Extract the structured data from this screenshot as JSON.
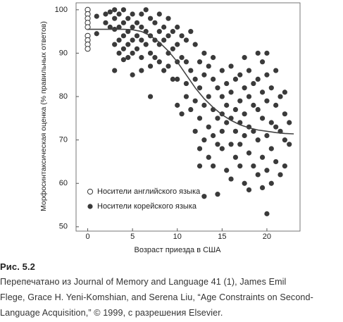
{
  "chart_data": {
    "type": "scatter",
    "x_label": "Возраст приезда в США",
    "y_label": "Морфосинтаксическая оценка (% правильных ответов)",
    "xlim": [
      -1.3,
      23.7
    ],
    "ylim": [
      49,
      101.6
    ],
    "xticks": [
      0,
      5,
      10,
      15,
      20
    ],
    "yticks": [
      50,
      60,
      70,
      80,
      90,
      100
    ],
    "legend": "lower left",
    "series": [
      {
        "name": "Носители английского языка",
        "color": "#333333",
        "marker": "open",
        "x": [
          0,
          0,
          0,
          0,
          0,
          0,
          0,
          0,
          0
        ],
        "values": [
          100,
          99,
          98,
          97,
          96,
          94,
          93,
          92,
          91
        ]
      },
      {
        "name": "Носители корейского языка",
        "color": "#3a3a3a",
        "marker": "filled",
        "x": [
          1,
          1,
          2,
          2,
          2.5,
          2.5,
          3,
          3,
          3,
          3,
          3,
          3.5,
          3.5,
          3.5,
          3.5,
          4,
          4,
          4,
          4,
          4,
          4.5,
          4.5,
          4.5,
          4.5,
          5,
          5,
          5,
          5,
          5,
          5.5,
          5.5,
          5.5,
          6,
          6,
          6,
          6,
          6,
          6.5,
          6.5,
          6.5,
          7,
          7,
          7,
          7,
          7,
          7.5,
          7.5,
          7.5,
          8,
          8,
          8,
          8,
          8.5,
          8.5,
          8.5,
          9,
          9,
          9,
          9,
          9.5,
          9.5,
          9.5,
          10,
          10,
          10,
          10,
          10,
          10.5,
          10.5,
          10.5,
          11,
          11,
          11,
          11,
          11.5,
          11.5,
          11.5,
          12,
          12,
          12,
          12,
          12.5,
          12.5,
          12.5,
          12.5,
          12.5,
          13,
          13,
          13,
          13,
          13,
          13.5,
          13.5,
          13.5,
          13.5,
          14,
          14,
          14,
          14,
          14,
          14.5,
          14.5,
          14.5,
          14.5,
          15,
          15,
          15,
          15,
          15,
          15.5,
          15.5,
          15.5,
          15.5,
          16,
          16,
          16,
          16,
          16,
          16.5,
          16.5,
          16.5,
          16.5,
          17,
          17,
          17,
          17,
          17,
          17.5,
          17.5,
          17.5,
          17.5,
          17.5,
          18,
          18,
          18,
          18,
          18,
          18.5,
          18.5,
          18.5,
          18.5,
          19,
          19,
          19,
          19,
          19,
          19.5,
          19.5,
          19.5,
          19.5,
          19.5,
          20,
          20,
          20,
          20,
          20,
          20,
          20.5,
          20.5,
          20.5,
          20.5,
          21,
          21,
          21,
          21,
          21.5,
          21.5,
          21.5,
          22,
          22,
          22,
          22,
          22.5,
          22.5
        ],
        "values": [
          98.5,
          94.5,
          99,
          97,
          99.5,
          96,
          100,
          98,
          95.5,
          92,
          86,
          99,
          96,
          93,
          90,
          100,
          97,
          94,
          91,
          88.5,
          98,
          95,
          92,
          89,
          99,
          96,
          93,
          90,
          85,
          97,
          94,
          91,
          99,
          96,
          93,
          89,
          86,
          100,
          95,
          92,
          98,
          94,
          90,
          87,
          80,
          97,
          93,
          89,
          99,
          95,
          92,
          88,
          96,
          93,
          86,
          98,
          94,
          90,
          87,
          95,
          91,
          84,
          96,
          92,
          88,
          84,
          78,
          94,
          89,
          76,
          93,
          88,
          83,
          80,
          95,
          86,
          77,
          92,
          84,
          79,
          72,
          88,
          82,
          75,
          68,
          64,
          90,
          85,
          78,
          70,
          57,
          87,
          80,
          73,
          66,
          89,
          84,
          77,
          71,
          64,
          82,
          75,
          69,
          57.5,
          86,
          80,
          76,
          72,
          68,
          83,
          78,
          74,
          63,
          87,
          81,
          75,
          69,
          61,
          84,
          77,
          72,
          66,
          85,
          79,
          74,
          69,
          64,
          89,
          82,
          76,
          71,
          60,
          86,
          80,
          73,
          67,
          58.5,
          83,
          78,
          72,
          64,
          90,
          84,
          77,
          70,
          62,
          88,
          81,
          75,
          66,
          59,
          90,
          85,
          79,
          71,
          63,
          53,
          82,
          74,
          68,
          60,
          86,
          78,
          73,
          65,
          80,
          72,
          62,
          81,
          76,
          70,
          64,
          74,
          69
        ]
      }
    ],
    "fit": {
      "color": "#444444",
      "x": [
        0,
        1,
        2,
        3,
        4,
        5,
        6,
        7,
        8,
        9,
        10,
        11,
        12,
        13,
        14,
        15,
        16,
        17,
        18,
        19,
        20,
        21,
        22,
        23
      ],
      "values": [
        95.5,
        95.5,
        95.5,
        95.5,
        95.5,
        95.4,
        95,
        94,
        92.5,
        90.5,
        88,
        85,
        82,
        79.5,
        77.5,
        75.8,
        74.5,
        73.5,
        72.8,
        72.3,
        72,
        71.7,
        71.5,
        71.4
      ]
    }
  },
  "caption": {
    "label": "Рис. 5.2",
    "lines": [
      "Перепечатано из Journal of Memory and Language 41 (1), James Emil",
      "Flege, Grace H. Yeni-Komshian, and Serena Liu, “Age Constraints on Second-",
      "Language Acquisition,” © 1999, с разрешения Elsevier."
    ]
  }
}
